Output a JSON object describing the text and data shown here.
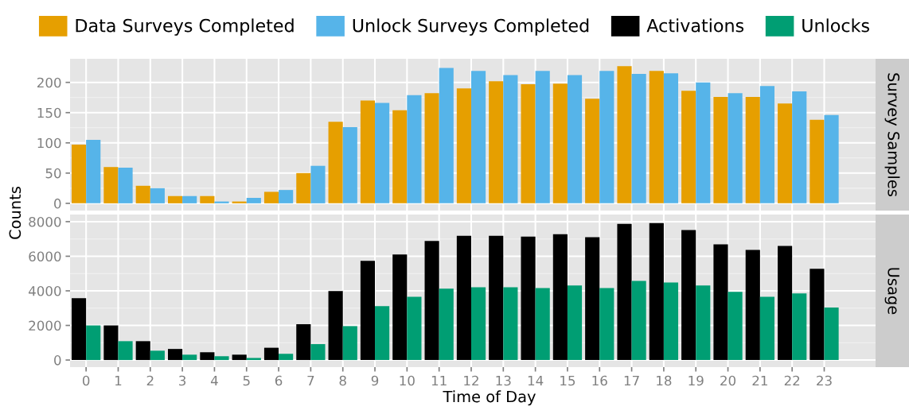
{
  "chart_data": [
    {
      "type": "bar",
      "y2label": "Survey Samples",
      "ylabel": "Counts",
      "categories": [
        "0",
        "1",
        "2",
        "3",
        "4",
        "5",
        "6",
        "7",
        "8",
        "9",
        "10",
        "11",
        "12",
        "13",
        "14",
        "15",
        "16",
        "17",
        "18",
        "19",
        "20",
        "21",
        "22",
        "23"
      ],
      "series": [
        {
          "name": "Data Surveys Completed",
          "color": "#e69f00",
          "values": [
            97,
            60,
            29,
            12,
            12,
            3,
            19,
            50,
            135,
            170,
            154,
            182,
            190,
            202,
            197,
            198,
            173,
            227,
            219,
            186,
            176,
            176,
            165,
            138
          ]
        },
        {
          "name": "Unlock Surveys Completed",
          "color": "#56b4e9",
          "values": [
            105,
            59,
            25,
            12,
            3,
            9,
            22,
            62,
            126,
            166,
            179,
            224,
            219,
            212,
            219,
            212,
            219,
            214,
            215,
            200,
            182,
            194,
            185,
            146
          ]
        }
      ],
      "ylim": [
        -12,
        239
      ],
      "yticks": [
        0,
        50,
        100,
        150,
        200
      ],
      "grid": true,
      "legend": "top",
      "tick_labels": "y"
    },
    {
      "type": "bar",
      "y2label": "Usage",
      "xlabel": "Time of Day",
      "categories": [
        "0",
        "1",
        "2",
        "3",
        "4",
        "5",
        "6",
        "7",
        "8",
        "9",
        "10",
        "11",
        "12",
        "13",
        "14",
        "15",
        "16",
        "17",
        "18",
        "19",
        "20",
        "21",
        "22",
        "23"
      ],
      "series": [
        {
          "name": "Activations",
          "color": "#000000",
          "values": [
            3570,
            2000,
            1090,
            640,
            450,
            310,
            710,
            2070,
            3990,
            5730,
            6100,
            6880,
            7180,
            7180,
            7130,
            7270,
            7100,
            7870,
            7920,
            7510,
            6690,
            6370,
            6590,
            5270
          ]
        },
        {
          "name": "Unlocks",
          "color": "#009e73",
          "values": [
            2000,
            1090,
            540,
            310,
            220,
            120,
            360,
            920,
            1960,
            3120,
            3660,
            4130,
            4210,
            4210,
            4160,
            4310,
            4160,
            4570,
            4480,
            4310,
            3940,
            3660,
            3850,
            3030
          ]
        }
      ],
      "ylim": [
        -410,
        8410
      ],
      "yticks": [
        0,
        2000,
        4000,
        6000,
        8000
      ],
      "grid": true,
      "legend": "top"
    }
  ]
}
